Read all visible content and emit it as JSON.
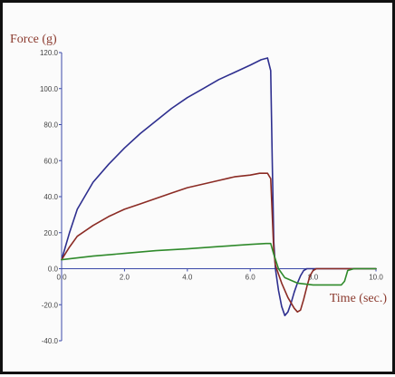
{
  "chart_data": {
    "type": "line",
    "title": "",
    "xlabel": "Time (sec.)",
    "ylabel": "Force (g)",
    "xlim": [
      0,
      10
    ],
    "ylim": [
      -40,
      120
    ],
    "xticks": [
      "0.0",
      "2.0",
      "4.0",
      "6.0",
      "8.0",
      "10.0"
    ],
    "yticks": [
      "120.0",
      "100.0",
      "80.0",
      "60.0",
      "40.0",
      "20.0",
      "0.0",
      "-20.0",
      "-40.0"
    ],
    "grid": false,
    "legend": "none",
    "series": [
      {
        "color": "#2e2f8f",
        "x": [
          0,
          0.25,
          0.5,
          1.0,
          1.5,
          2.0,
          2.5,
          3.0,
          3.5,
          4.0,
          4.5,
          5.0,
          5.5,
          6.0,
          6.35,
          6.55,
          6.65,
          6.7,
          6.75,
          6.8,
          6.9,
          7.0,
          7.1,
          7.2,
          7.3,
          7.4,
          7.5,
          7.6,
          7.7,
          7.8,
          8.0,
          8.2,
          8.5,
          9.0,
          10.0
        ],
        "y": [
          5,
          20,
          33,
          48,
          58,
          67,
          75,
          82,
          89,
          95,
          100,
          105,
          109,
          113,
          116,
          117,
          110,
          60,
          15,
          0,
          -12,
          -21,
          -26,
          -24,
          -19,
          -13,
          -8,
          -4,
          -1,
          0,
          0,
          0,
          0,
          0,
          0
        ]
      },
      {
        "color": "#8b2b24",
        "x": [
          0,
          0.25,
          0.5,
          1.0,
          1.5,
          2.0,
          2.5,
          3.0,
          3.5,
          4.0,
          4.5,
          5.0,
          5.5,
          6.0,
          6.3,
          6.55,
          6.65,
          6.7,
          6.75,
          6.8,
          6.9,
          7.0,
          7.2,
          7.4,
          7.5,
          7.6,
          7.7,
          7.8,
          7.9,
          8.0,
          8.1,
          8.2,
          8.5,
          9.0,
          10.0
        ],
        "y": [
          5,
          12,
          18,
          24,
          29,
          33,
          36,
          39,
          42,
          45,
          47,
          49,
          51,
          52,
          53,
          53,
          50,
          30,
          10,
          2,
          -3,
          -8,
          -16,
          -22,
          -24,
          -23,
          -17,
          -10,
          -4,
          -1,
          0,
          0,
          0,
          0,
          0
        ]
      },
      {
        "color": "#2f8a2b",
        "x": [
          0,
          0.5,
          1.0,
          2.0,
          3.0,
          4.0,
          5.0,
          6.0,
          6.5,
          6.65,
          6.75,
          6.9,
          7.1,
          7.5,
          8.0,
          8.5,
          8.9,
          9.0,
          9.1,
          9.3,
          10.0
        ],
        "y": [
          5,
          6,
          7,
          8.5,
          10,
          11,
          12.3,
          13.5,
          14,
          14,
          8,
          0,
          -5,
          -8,
          -9,
          -9,
          -9,
          -7,
          -1,
          0,
          0
        ]
      }
    ]
  }
}
